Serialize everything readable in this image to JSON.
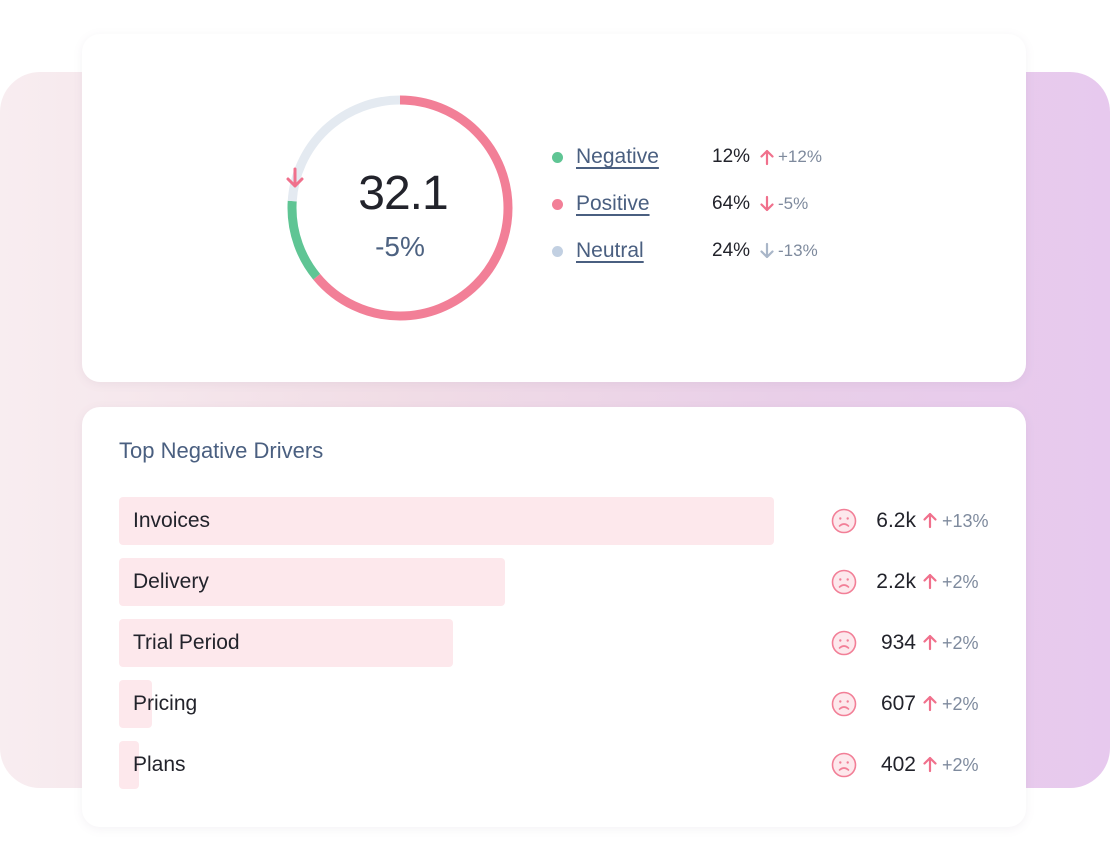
{
  "colors": {
    "negative": "#5fc594",
    "positive": "#f27f97",
    "neutral": "#c2d0e2",
    "track": "#e4eaf1",
    "bar": "#fde8ec",
    "up_arrow": "#f0708c",
    "down_arrow_positive": "#f0708c",
    "down_arrow_neutral": "#a9b6c8"
  },
  "score": {
    "value": "32.1",
    "direction": "down",
    "change": "-5%"
  },
  "legend": [
    {
      "label": "Negative",
      "percent": "12%",
      "direction": "up",
      "delta": "+12%",
      "color": "#5fc594"
    },
    {
      "label": "Positive",
      "percent": "64%",
      "direction": "down",
      "delta": "-5%",
      "color": "#f27f97"
    },
    {
      "label": "Neutral",
      "percent": "24%",
      "direction": "down",
      "delta": "-13%",
      "color": "#c2d0e2"
    }
  ],
  "donut_segments": [
    {
      "name": "Positive",
      "share": 0.64,
      "color": "#f27f97"
    },
    {
      "name": "Negative",
      "share": 0.12,
      "color": "#5fc594"
    },
    {
      "name": "Neutral",
      "share": 0.24,
      "color": "#e4eaf1"
    }
  ],
  "drivers": {
    "title": "Top Negative Drivers",
    "items": [
      {
        "name": "Invoices",
        "count": "6.2k",
        "delta": "+13%",
        "direction": "up",
        "icon": "sad-face-icon",
        "share": 1.0
      },
      {
        "name": "Delivery",
        "count": "2.2k",
        "delta": "+2%",
        "direction": "up",
        "icon": "sad-face-icon",
        "share": 0.59
      },
      {
        "name": "Trial Period",
        "count": "934",
        "delta": "+2%",
        "direction": "up",
        "icon": "sad-face-icon",
        "share": 0.51
      },
      {
        "name": "Pricing",
        "count": "607",
        "delta": "+2%",
        "direction": "up",
        "icon": "sad-face-icon",
        "share": 0.05
      },
      {
        "name": "Plans",
        "count": "402",
        "delta": "+2%",
        "direction": "up",
        "icon": "sad-face-icon",
        "share": 0.03
      }
    ]
  }
}
